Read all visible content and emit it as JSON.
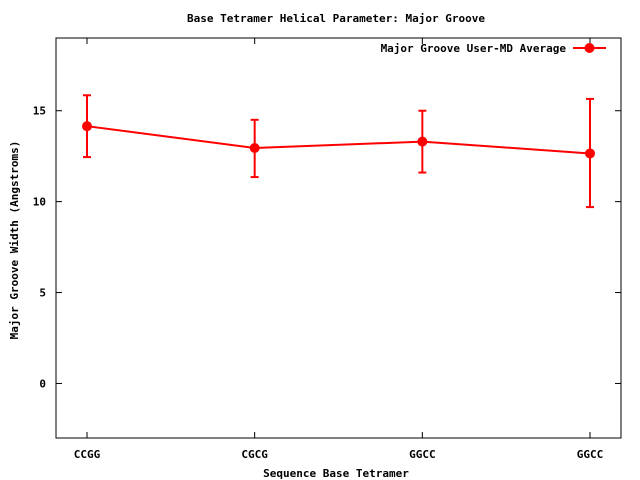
{
  "chart_data": {
    "type": "line",
    "title": "Base Tetramer Helical Parameter: Major Groove",
    "xlabel": "Sequence Base Tetramer",
    "ylabel": "Major Groove Width (Angstroms)",
    "categories": [
      "CCGG",
      "CGCG",
      "GGCC",
      "GGCC"
    ],
    "ylim": [
      -3,
      19
    ],
    "yticks": [
      0,
      5,
      10,
      15
    ],
    "grid": false,
    "legend_position": "top-right",
    "series": [
      {
        "name": "Major Groove User-MD Average",
        "color": "#ff0000",
        "values": [
          14.15,
          12.95,
          13.3,
          12.65
        ],
        "error_low": [
          12.45,
          11.35,
          11.6,
          9.7
        ],
        "error_high": [
          15.85,
          14.5,
          15.0,
          15.65
        ]
      }
    ]
  }
}
